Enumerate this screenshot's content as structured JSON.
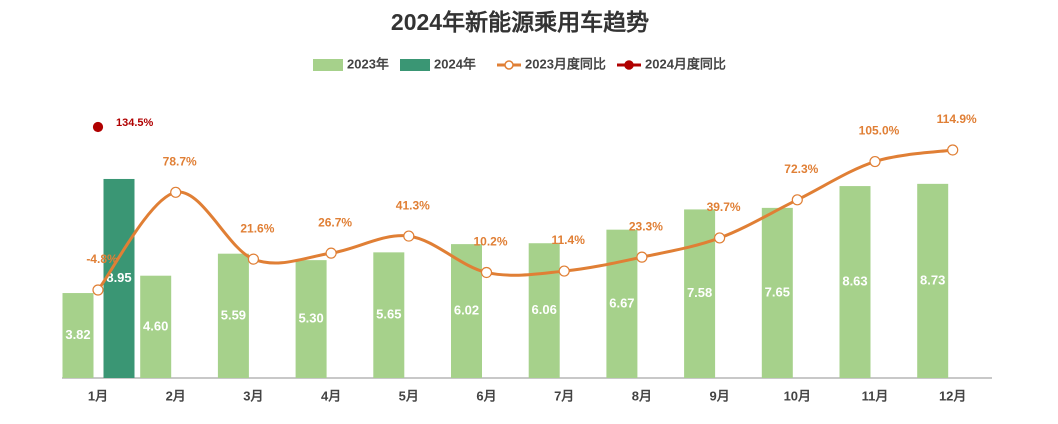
{
  "chart_data": {
    "type": "bar",
    "title": "2024年新能源乘用车趋势",
    "categories": [
      "1月",
      "2月",
      "3月",
      "4月",
      "5月",
      "6月",
      "7月",
      "8月",
      "9月",
      "10月",
      "11月",
      "12月"
    ],
    "ylim": [
      0,
      13.4
    ],
    "y2lim": [
      -80,
      174.7
    ],
    "series": [
      {
        "name": "2023年",
        "type": "bar",
        "color": "#a6d18b",
        "values": [
          3.82,
          4.6,
          5.59,
          5.3,
          5.65,
          6.02,
          6.06,
          6.67,
          7.58,
          7.65,
          8.63,
          8.73
        ],
        "value_labels": [
          "3.82",
          "4.60",
          "5.59",
          "5.30",
          "5.65",
          "6.02",
          "6.06",
          "6.67",
          "7.58",
          "7.65",
          "8.63",
          "8.73"
        ]
      },
      {
        "name": "2024年",
        "type": "bar",
        "color": "#3a9674",
        "values": [
          8.95,
          null,
          null,
          null,
          null,
          null,
          null,
          null,
          null,
          null,
          null,
          null
        ],
        "value_labels": [
          "8.95",
          null,
          null,
          null,
          null,
          null,
          null,
          null,
          null,
          null,
          null,
          null
        ]
      },
      {
        "name": "2023月度同比",
        "type": "line",
        "axis": "y2",
        "color": "#e07f35",
        "values": [
          -4.8,
          78.7,
          21.6,
          26.7,
          41.3,
          10.2,
          11.4,
          23.3,
          39.7,
          72.3,
          105.0,
          114.9
        ],
        "value_labels": [
          "-4.8%",
          "78.7%",
          "21.6%",
          "26.7%",
          "41.3%",
          "10.2%",
          "11.4%",
          "23.3%",
          "39.7%",
          "72.3%",
          "105.0%",
          "114.9%"
        ]
      },
      {
        "name": "2024月度同比",
        "type": "line",
        "axis": "y2",
        "color": "#b00000",
        "values": [
          134.5,
          null,
          null,
          null,
          null,
          null,
          null,
          null,
          null,
          null,
          null,
          null
        ],
        "value_labels": [
          "134.5%",
          null,
          null,
          null,
          null,
          null,
          null,
          null,
          null,
          null,
          null,
          null
        ]
      }
    ]
  }
}
